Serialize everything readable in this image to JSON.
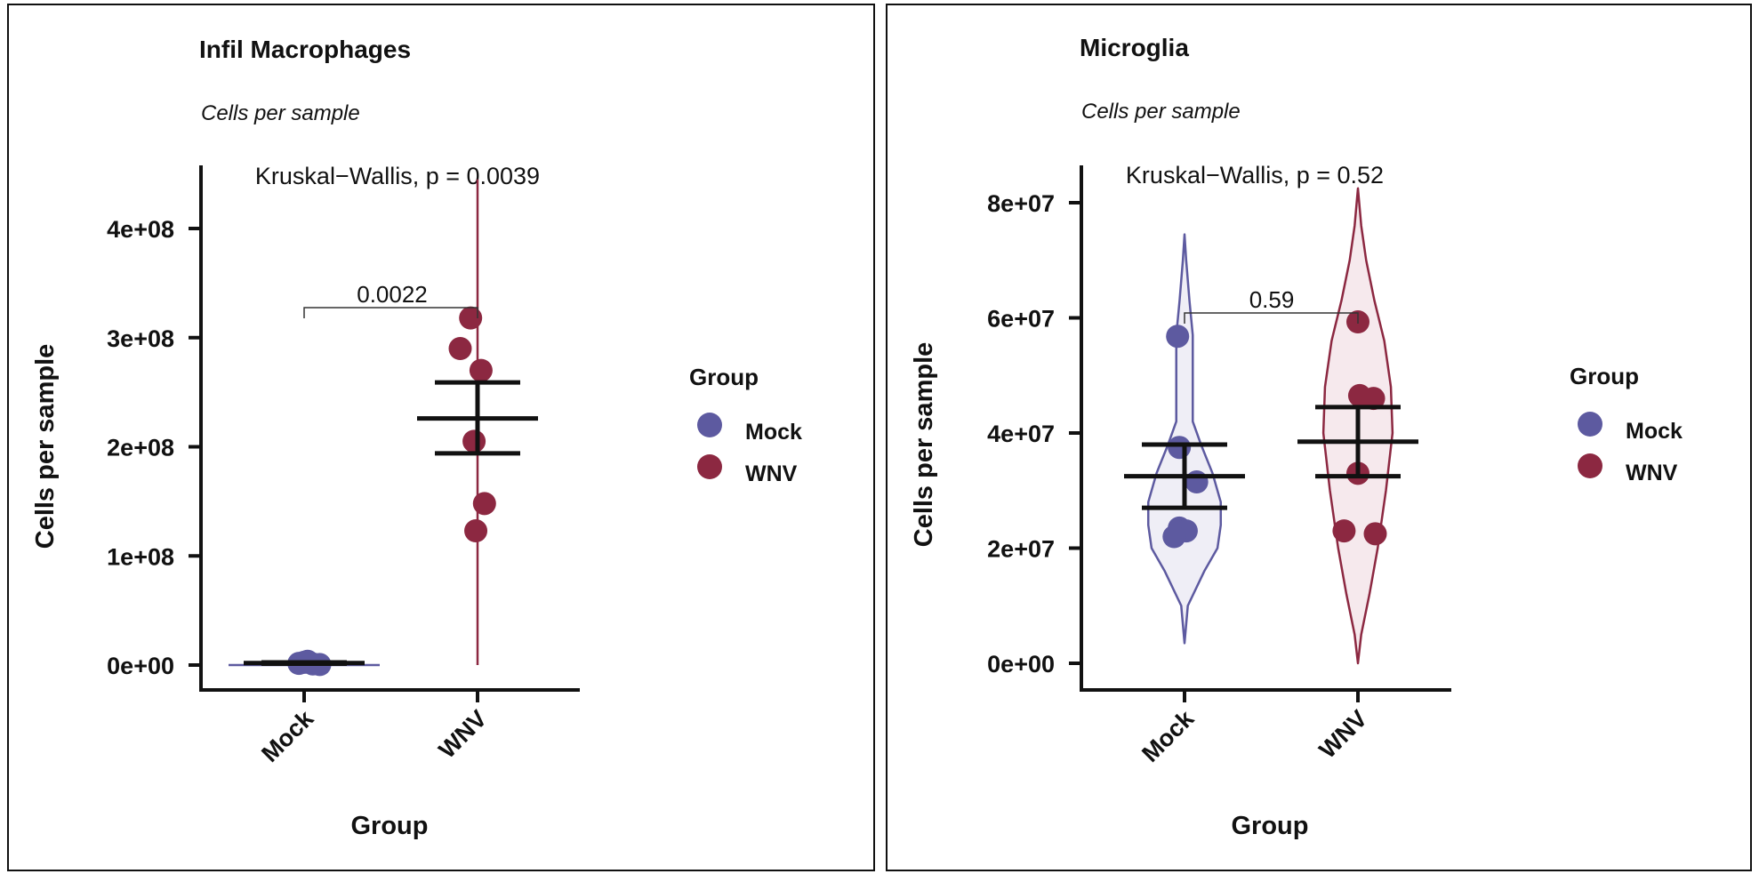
{
  "colors": {
    "Mock": "#5d5aa0",
    "WNV": "#8c2841",
    "Mock_fill": "#efeef6",
    "WNV_fill": "#f6e9ed"
  },
  "chart_data": [
    {
      "type": "scatter",
      "title": "Infil Macrophages",
      "subtitle": "Cells per sample",
      "xlabel": "Group",
      "ylabel": "Cells per sample",
      "categories": [
        "Mock",
        "WNV"
      ],
      "ylim": [
        -20000000,
        450000000
      ],
      "yticks": [
        0,
        100000000,
        200000000,
        300000000,
        400000000
      ],
      "ytick_labels": [
        "0e+00",
        "1e+08",
        "2e+08",
        "3e+08",
        "4e+08"
      ],
      "test_label": "Kruskal−Wallis, p = 0.0039",
      "pairwise_label": "0.0022",
      "series": [
        {
          "name": "Mock",
          "points": [
            [
              -0.03,
              1500000
            ],
            [
              0.0,
              2500000
            ],
            [
              0.05,
              1000000
            ],
            [
              0.09,
              500000
            ],
            [
              0.02,
              3500000
            ]
          ],
          "mean": 1800000,
          "error": [
            1200000,
            2400000
          ],
          "violin_range": [
            0,
            4500000
          ]
        },
        {
          "name": "WNV",
          "points": [
            [
              -0.04,
              318000000
            ],
            [
              -0.1,
              290000000
            ],
            [
              0.02,
              270000000
            ],
            [
              -0.02,
              205000000
            ],
            [
              0.04,
              148000000
            ],
            [
              -0.01,
              123000000
            ]
          ],
          "mean": 226000000,
          "error": [
            194000000,
            259000000
          ],
          "violin_range": [
            0,
            445000000
          ]
        }
      ],
      "legend": {
        "title": "Group",
        "entries": [
          "Mock",
          "WNV"
        ],
        "position": "right"
      }
    },
    {
      "type": "scatter",
      "title": "Microglia",
      "subtitle": "Cells per sample",
      "xlabel": "Group",
      "ylabel": "Cells per sample",
      "categories": [
        "Mock",
        "WNV"
      ],
      "ylim": [
        -4000000,
        87000000
      ],
      "yticks": [
        0,
        20000000,
        40000000,
        60000000,
        80000000
      ],
      "ytick_labels": [
        "0e+00",
        "2e+07",
        "4e+07",
        "6e+07",
        "8e+07"
      ],
      "test_label": "Kruskal−Wallis, p = 0.52",
      "pairwise_label": "0.59",
      "series": [
        {
          "name": "Mock",
          "points": [
            [
              -0.04,
              56800000
            ],
            [
              -0.03,
              37500000
            ],
            [
              0.07,
              31500000
            ],
            [
              -0.03,
              23500000
            ],
            [
              0.01,
              23000000
            ],
            [
              -0.06,
              22000000
            ]
          ],
          "mean": 32500000,
          "error": [
            27000000,
            38000000
          ],
          "violin_range": [
            3500000,
            74500000
          ],
          "violin_width": [
            [
              3500000,
              0.0
            ],
            [
              10000000,
              0.02
            ],
            [
              16000000,
              0.12
            ],
            [
              20000000,
              0.2
            ],
            [
              24000000,
              0.22
            ],
            [
              28000000,
              0.22
            ],
            [
              33000000,
              0.17
            ],
            [
              38000000,
              0.1
            ],
            [
              42000000,
              0.05
            ],
            [
              50000000,
              0.05
            ],
            [
              57000000,
              0.05
            ],
            [
              63000000,
              0.03
            ],
            [
              70000000,
              0.01
            ],
            [
              74500000,
              0.0
            ]
          ]
        },
        {
          "name": "WNV",
          "points": [
            [
              0.0,
              59300000
            ],
            [
              0.01,
              46500000
            ],
            [
              0.09,
              46000000
            ],
            [
              0.0,
              33000000
            ],
            [
              -0.08,
              23000000
            ],
            [
              0.1,
              22500000
            ]
          ],
          "mean": 38500000,
          "error": [
            32500000,
            44500000
          ],
          "violin_range": [
            0,
            82500000
          ],
          "violin_width": [
            [
              0,
              0.0
            ],
            [
              5000000,
              0.02
            ],
            [
              12000000,
              0.07
            ],
            [
              20000000,
              0.12
            ],
            [
              30000000,
              0.17
            ],
            [
              40000000,
              0.21
            ],
            [
              48000000,
              0.2
            ],
            [
              56000000,
              0.16
            ],
            [
              63000000,
              0.1
            ],
            [
              70000000,
              0.05
            ],
            [
              76000000,
              0.02
            ],
            [
              82500000,
              0.0
            ]
          ]
        }
      ],
      "legend": {
        "title": "Group",
        "entries": [
          "Mock",
          "WNV"
        ],
        "position": "right"
      }
    }
  ]
}
